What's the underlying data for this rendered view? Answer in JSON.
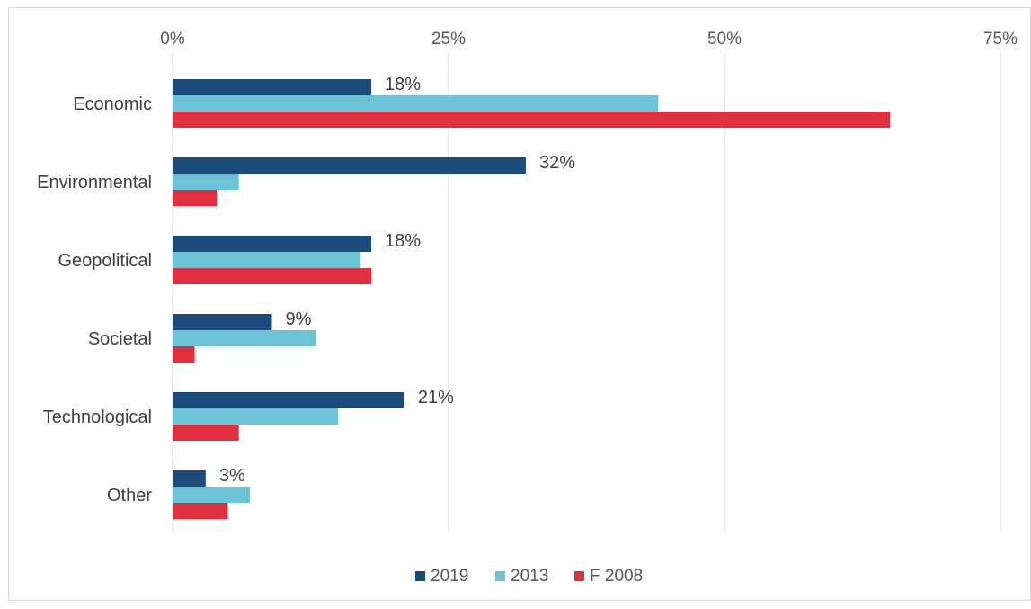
{
  "chart_data": {
    "type": "bar",
    "orientation": "horizontal",
    "categories": [
      "Economic",
      "Environmental",
      "Geopolitical",
      "Societal",
      "Technological",
      "Other"
    ],
    "series": [
      {
        "name": "2019",
        "color": "#1a4b7a",
        "values": [
          18,
          32,
          18,
          9,
          21,
          3
        ],
        "data_labels": [
          "18%",
          "32%",
          "18%",
          "9%",
          "21%",
          "3%"
        ]
      },
      {
        "name": "2013",
        "color": "#6cc3d5",
        "values": [
          44,
          6,
          17,
          13,
          15,
          7
        ]
      },
      {
        "name": "F 2008",
        "color": "#e03040",
        "values": [
          65,
          4,
          18,
          2,
          6,
          5
        ]
      }
    ],
    "xlim": [
      0,
      75
    ],
    "x_ticks": [
      "0%",
      "25%",
      "50%",
      "75%"
    ],
    "x_tick_values": [
      0,
      25,
      50,
      75
    ],
    "x_axis_position": "top",
    "grid": true,
    "legend_position": "bottom"
  }
}
